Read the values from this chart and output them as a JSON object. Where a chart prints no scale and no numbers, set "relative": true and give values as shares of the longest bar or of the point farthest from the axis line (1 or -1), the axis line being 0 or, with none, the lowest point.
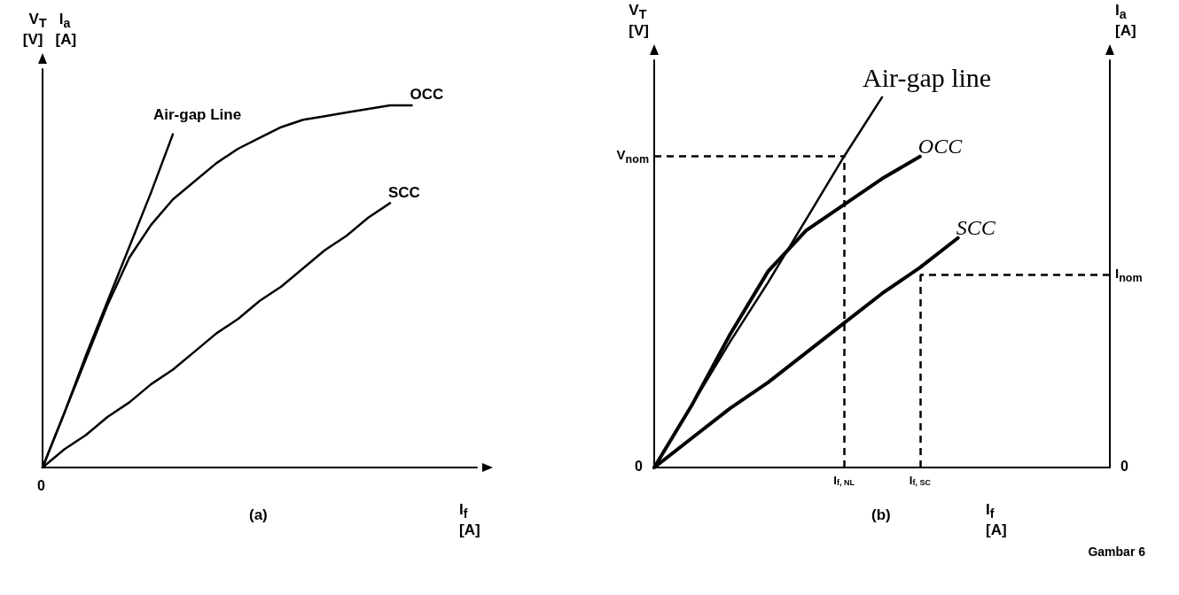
{
  "chart_data": [
    {
      "type": "line",
      "relative": true,
      "ylabel": "V$_{T}$   I$_{a}$\n[V]   [A]",
      "xlabel": "I$_{f}$\n[A]",
      "legend": false,
      "grid": false,
      "marker": "none",
      "line_style": "solid",
      "categories": [
        null,
        null,
        null,
        null,
        null,
        null,
        null,
        null,
        null,
        null,
        null,
        null,
        null,
        null,
        null,
        null,
        null,
        null,
        null,
        null,
        null
      ],
      "series": [
        {
          "name": "Air-gap Line",
          "color": "#000000",
          "values": [
            0,
            0.15,
            0.31,
            0.46,
            0.61,
            0.76,
            0.92,
            null,
            null,
            null,
            null,
            null,
            null,
            null,
            null,
            null,
            null,
            null,
            null,
            null,
            null
          ]
        },
        {
          "name": "OCC",
          "color": "#000000",
          "values": [
            0,
            0.15,
            0.3,
            0.45,
            0.58,
            0.67,
            0.74,
            0.79,
            0.84,
            0.88,
            0.91,
            0.94,
            0.96,
            0.97,
            0.98,
            0.99,
            1.0,
            1.0,
            null,
            null,
            null
          ]
        },
        {
          "name": "SCC",
          "color": "#000000",
          "values": [
            0,
            0.05,
            0.09,
            0.14,
            0.18,
            0.23,
            0.27,
            0.32,
            0.37,
            0.41,
            0.46,
            0.5,
            0.55,
            0.6,
            0.64,
            0.69,
            0.73,
            null,
            null,
            null,
            null
          ]
        }
      ],
      "annotations": [
        "(a)",
        "0"
      ]
    },
    {
      "type": "line",
      "relative": true,
      "ylabel": "V$_{T}$\n[V]",
      "y2label": "I$_{a}$\n[A]",
      "xlabel": "I$_{f}$\n[A]",
      "legend": false,
      "grid": false,
      "marker": "none",
      "line_style": "solid",
      "categories": [
        null,
        null,
        null,
        null,
        null,
        "I$_{f, NL}$",
        null,
        "I$_{f, SC}$",
        null,
        null,
        null,
        null,
        null
      ],
      "series": [
        {
          "name": "Air-gap line",
          "color": "#000000",
          "values": [
            0,
            0.17,
            0.34,
            0.5,
            0.67,
            0.84,
            1.0,
            null,
            null,
            null,
            null,
            null,
            null
          ]
        },
        {
          "name": "OCC",
          "color": "#000000",
          "values": [
            0,
            0.17,
            0.36,
            0.53,
            0.64,
            0.71,
            0.78,
            0.84,
            null,
            null,
            null,
            null,
            null
          ]
        },
        {
          "name": "SCC",
          "color": "#000000",
          "values": [
            0,
            0.08,
            0.16,
            0.23,
            0.31,
            0.39,
            0.47,
            0.54,
            0.62,
            null,
            null,
            null,
            null
          ]
        }
      ],
      "ref_lines": [
        {
          "axis": "y",
          "value": 0.84,
          "label": "V$_{nom}$",
          "line_style": "dashed",
          "color": "#000000"
        },
        {
          "axis": "x",
          "value": "I$_{f, NL}$",
          "line_style": "dashed",
          "color": "#000000"
        },
        {
          "axis": "y",
          "value": 0.52,
          "label": "I$_{nom}$",
          "line_style": "dashed",
          "color": "#000000"
        },
        {
          "axis": "x",
          "value": "I$_{f, SC}$",
          "line_style": "dashed",
          "color": "#000000"
        }
      ],
      "annotations": [
        "(b)",
        "0",
        "0",
        "Gambar 6"
      ]
    }
  ]
}
